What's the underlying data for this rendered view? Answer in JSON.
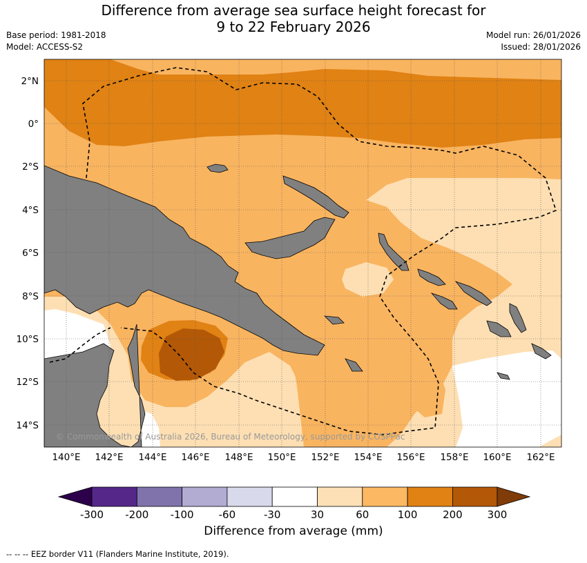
{
  "title": {
    "line1": "Difference from average sea surface height forecast for",
    "line2": "9 to 22 February 2026"
  },
  "meta": {
    "base_period": "Base period: 1981-2018",
    "model": "Model: ACCESS-S2",
    "model_run": "Model run: 26/01/2026",
    "issued": "Issued: 28/01/2026"
  },
  "map": {
    "lat_labels": [
      "2°N",
      "0°",
      "2°S",
      "4°S",
      "6°S",
      "8°S",
      "10°S",
      "12°S",
      "14°S"
    ],
    "lon_labels": [
      "140°E",
      "142°E",
      "144°E",
      "146°E",
      "148°E",
      "150°E",
      "152°E",
      "154°E",
      "156°E",
      "158°E",
      "160°E",
      "162°E"
    ],
    "copyright": "© Commonwealth of Australia 2026, Bureau of Meteorology, supported by COSPPac",
    "colors": {
      "band_30_60": "#fddfb3",
      "band_60_100": "#f9b460",
      "band_100_200": "#e08214",
      "band_200_300": "#b35806",
      "land": "#808080",
      "ocean_neutral": "#ffffff"
    }
  },
  "colorbar": {
    "ticks": [
      "-300",
      "-200",
      "-100",
      "-60",
      "-30",
      "30",
      "60",
      "100",
      "200",
      "300"
    ],
    "colors": [
      "#2d004b",
      "#542788",
      "#8073ac",
      "#b2abd2",
      "#d8daeb",
      "#ffffff",
      "#fee0b6",
      "#fdb863",
      "#e08214",
      "#b35806",
      "#7f3b08"
    ],
    "label": "Difference from average (mm)"
  },
  "footer": "--  --  -- EEZ border V11 (Flanders Marine Institute, 2019)."
}
